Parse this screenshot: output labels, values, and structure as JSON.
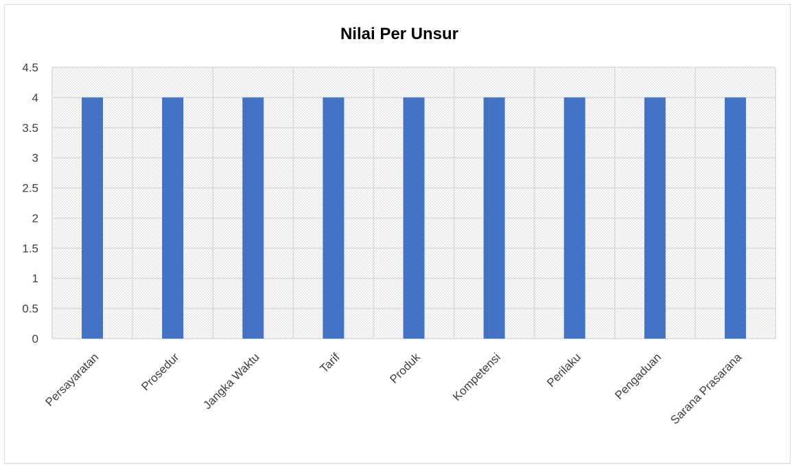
{
  "chart_data": {
    "type": "bar",
    "title": "Nilai Per Unsur",
    "xlabel": "",
    "ylabel": "",
    "categories": [
      "Persayaratan",
      "Prosedur",
      "Jangka Waktu",
      "Tarif",
      "Produk",
      "Kompetensi",
      "Perilaku",
      "Pengaduan",
      "Sarana Prasarana"
    ],
    "series": [
      {
        "values": [
          4,
          4,
          4,
          4,
          4,
          4,
          4,
          4,
          4
        ]
      }
    ],
    "ylim": [
      0,
      4.5
    ],
    "yticks": [
      "0",
      "0.5",
      "1",
      "1.5",
      "2",
      "2.5",
      "3",
      "3.5",
      "4",
      "4.5"
    ],
    "grid": true,
    "legend": "none",
    "colors": {
      "bar": "#4472C4",
      "grid": "#d9d9d9",
      "hatch": "#d9d9d9"
    }
  }
}
